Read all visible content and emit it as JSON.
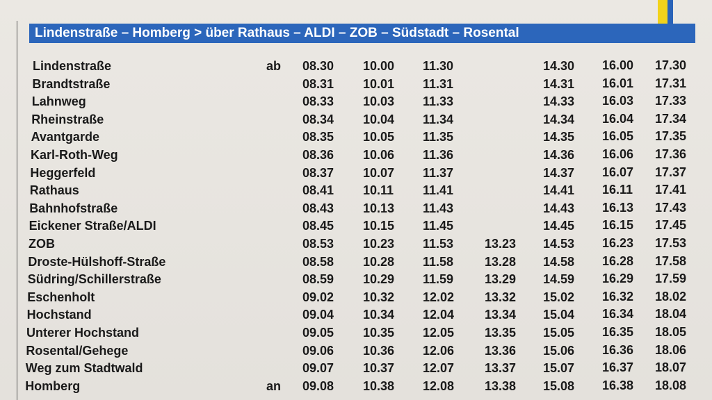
{
  "header": {
    "title": "Lindenstraße – Homberg > über Rathaus – ALDI – ZOB – Südstadt – Rosental"
  },
  "table": {
    "rows": [
      {
        "stop": "Lindenstraße",
        "mark": "ab",
        "times": [
          "08.30",
          "10.00",
          "11.30",
          null,
          "14.30",
          "16.00",
          "17.30"
        ]
      },
      {
        "stop": "Brandtstraße",
        "times": [
          "08.31",
          "10.01",
          "11.31",
          null,
          "14.31",
          "16.01",
          "17.31"
        ]
      },
      {
        "stop": "Lahnweg",
        "times": [
          "08.33",
          "10.03",
          "11.33",
          null,
          "14.33",
          "16.03",
          "17.33"
        ]
      },
      {
        "stop": "Rheinstraße",
        "times": [
          "08.34",
          "10.04",
          "11.34",
          null,
          "14.34",
          "16.04",
          "17.34"
        ]
      },
      {
        "stop": "Avantgarde",
        "times": [
          "08.35",
          "10.05",
          "11.35",
          null,
          "14.35",
          "16.05",
          "17.35"
        ]
      },
      {
        "stop": "Karl-Roth-Weg",
        "times": [
          "08.36",
          "10.06",
          "11.36",
          null,
          "14.36",
          "16.06",
          "17.36"
        ]
      },
      {
        "stop": "Heggerfeld",
        "times": [
          "08.37",
          "10.07",
          "11.37",
          null,
          "14.37",
          "16.07",
          "17.37"
        ]
      },
      {
        "stop": "Rathaus",
        "times": [
          "08.41",
          "10.11",
          "11.41",
          null,
          "14.41",
          "16.11",
          "17.41"
        ]
      },
      {
        "stop": "Bahnhofstraße",
        "times": [
          "08.43",
          "10.13",
          "11.43",
          null,
          "14.43",
          "16.13",
          "17.43"
        ]
      },
      {
        "stop": "Eickener Straße/ALDI",
        "times": [
          "08.45",
          "10.15",
          "11.45",
          null,
          "14.45",
          "16.15",
          "17.45"
        ]
      },
      {
        "stop": "ZOB",
        "times": [
          "08.53",
          "10.23",
          "11.53",
          "13.23",
          "14.53",
          "16.23",
          "17.53"
        ]
      },
      {
        "stop": "Droste-Hülshoff-Straße",
        "times": [
          "08.58",
          "10.28",
          "11.58",
          "13.28",
          "14.58",
          "16.28",
          "17.58"
        ]
      },
      {
        "stop": "Südring/Schillerstraße",
        "times": [
          "08.59",
          "10.29",
          "11.59",
          "13.29",
          "14.59",
          "16.29",
          "17.59"
        ]
      },
      {
        "stop": "Eschenholt",
        "times": [
          "09.02",
          "10.32",
          "12.02",
          "13.32",
          "15.02",
          "16.32",
          "18.02"
        ]
      },
      {
        "stop": "Hochstand",
        "times": [
          "09.04",
          "10.34",
          "12.04",
          "13.34",
          "15.04",
          "16.34",
          "18.04"
        ]
      },
      {
        "stop": "Unterer Hochstand",
        "times": [
          "09.05",
          "10.35",
          "12.05",
          "13.35",
          "15.05",
          "16.35",
          "18.05"
        ]
      },
      {
        "stop": "Rosental/Gehege",
        "times": [
          "09.06",
          "10.36",
          "12.06",
          "13.36",
          "15.06",
          "16.36",
          "18.06"
        ]
      },
      {
        "stop": "Weg zum Stadtwald",
        "times": [
          "09.07",
          "10.37",
          "12.07",
          "13.37",
          "15.07",
          "16.37",
          "18.07"
        ]
      },
      {
        "stop": "Homberg",
        "mark": "an",
        "times": [
          "09.08",
          "10.38",
          "12.08",
          "13.38",
          "15.08",
          "16.38",
          "18.08"
        ]
      }
    ]
  }
}
